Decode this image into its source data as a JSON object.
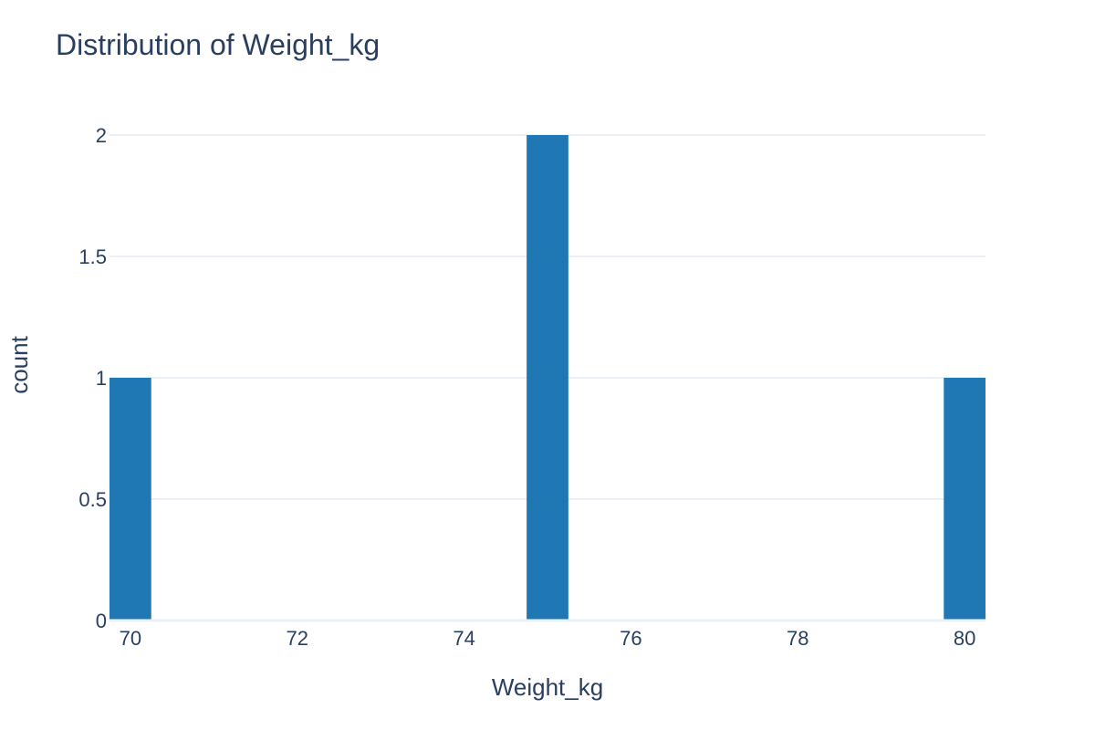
{
  "chart_data": {
    "type": "bar",
    "title": "Distribution of Weight_kg",
    "xlabel": "Weight_kg",
    "ylabel": "count",
    "x": [
      70,
      75,
      80
    ],
    "values": [
      1,
      2,
      1
    ],
    "bin_width": 0.5,
    "xlim": [
      69.75,
      80.25
    ],
    "ylim": [
      0,
      2
    ],
    "xticks": [
      70,
      72,
      74,
      76,
      78,
      80
    ],
    "xtick_labels": [
      "70",
      "72",
      "74",
      "76",
      "78",
      "80"
    ],
    "yticks": [
      0,
      0.5,
      1,
      1.5,
      2
    ],
    "ytick_labels": [
      "0",
      "0.5",
      "1",
      "1.5",
      "2"
    ],
    "grid": true,
    "legend": "none",
    "colors": {
      "bar": "#1f77b4",
      "grid": "#ebf0f8",
      "text": "#2a3f5f"
    }
  }
}
